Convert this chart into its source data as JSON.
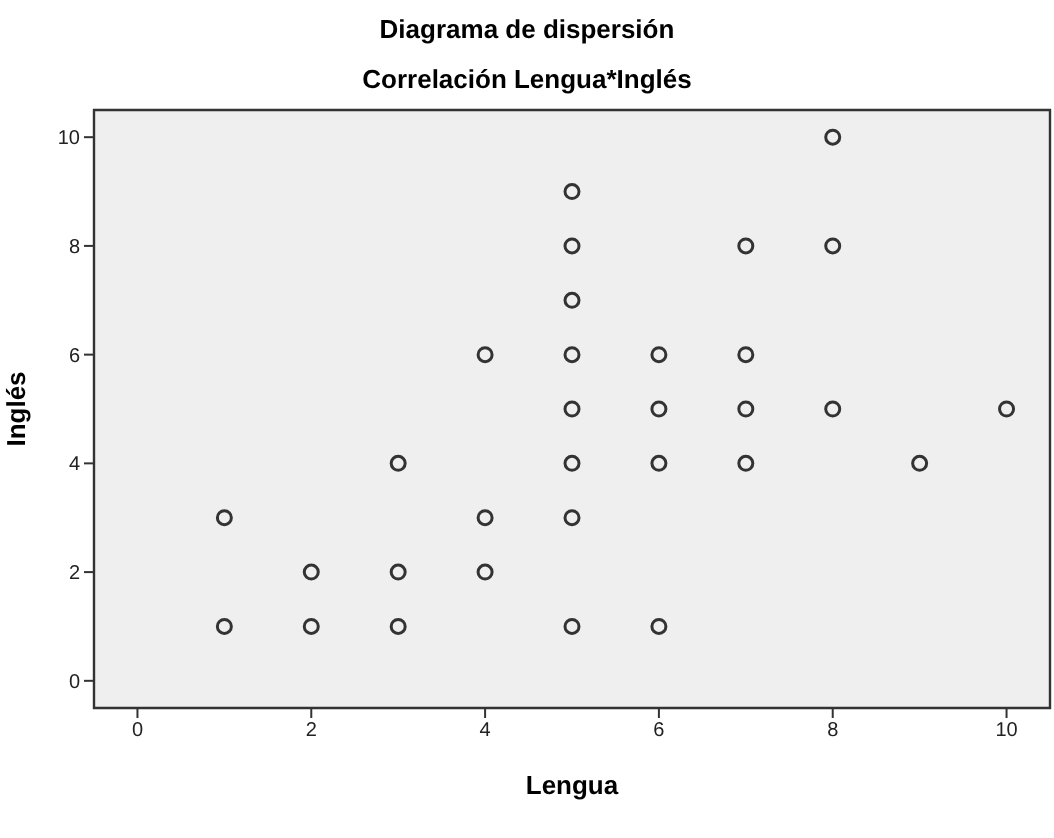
{
  "chart_data": {
    "type": "scatter",
    "title": "Diagrama de dispersión",
    "subtitle": "Correlación Lengua*Inglés",
    "xlabel": "Lengua",
    "ylabel": "Inglés",
    "x": [
      1,
      1,
      2,
      2,
      3,
      3,
      3,
      4,
      4,
      4,
      5,
      5,
      5,
      5,
      5,
      5,
      5,
      5,
      6,
      6,
      6,
      6,
      7,
      7,
      7,
      7,
      8,
      8,
      8,
      9,
      10
    ],
    "values": [
      3,
      1,
      2,
      1,
      4,
      2,
      1,
      6,
      3,
      2,
      9,
      8,
      7,
      6,
      5,
      4,
      3,
      1,
      6,
      5,
      4,
      1,
      8,
      6,
      5,
      4,
      10,
      8,
      5,
      4,
      5
    ],
    "color": "#333333",
    "marker": "circle",
    "xlim": [
      -0.5,
      10.5
    ],
    "xticks": [
      0,
      2,
      4,
      6,
      8,
      10
    ],
    "ylim": [
      -0.5,
      10.5
    ],
    "yticks": [
      0,
      2,
      4,
      6,
      8,
      10
    ]
  }
}
